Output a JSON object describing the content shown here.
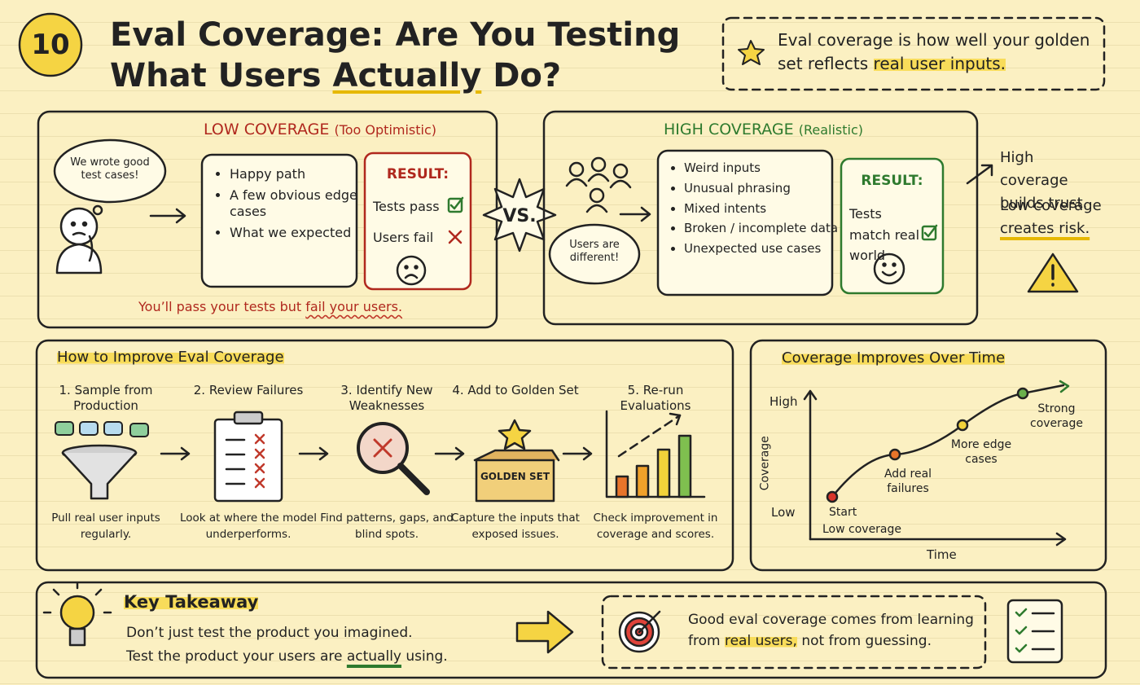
{
  "header": {
    "number": "10",
    "title_line1": "Eval Coverage: Are You Testing",
    "title_line2": [
      "What Users ",
      "Actually",
      " Do?"
    ]
  },
  "definition": [
    "Eval coverage is how well your golden set reflects ",
    "real user inputs."
  ],
  "low_coverage": {
    "title": "LOW COVERAGE",
    "subtitle": "(Too Optimistic)",
    "thought": "We wrote good test cases!",
    "items": [
      "Happy path",
      "A few obvious edge cases",
      "What we expected"
    ],
    "result_title": "RESULT:",
    "results": [
      "Tests pass",
      "Users fail"
    ],
    "footer": [
      "You’ll pass your tests but ",
      "fail your users."
    ]
  },
  "versus": "VS.",
  "high_coverage": {
    "title": "HIGH COVERAGE",
    "subtitle": "(Realistic)",
    "thought": "Users are different!",
    "items": [
      "Weird inputs",
      "Unusual phrasing",
      "Mixed intents",
      "Broken / incomplete data",
      "Unexpected use cases"
    ],
    "result_title": "RESULT:",
    "results": [
      "Tests match real world"
    ]
  },
  "conclusion": [
    "High coverage builds trust.",
    "Low coverage ",
    "creates risk."
  ],
  "improve": {
    "title": "How to Improve Eval Coverage",
    "steps": [
      {
        "title": "1. Sample from Production",
        "description": "Pull real user inputs regularly."
      },
      {
        "title": "2. Review Failures",
        "description": "Look at where the model underperforms."
      },
      {
        "title": "3. Identify New Weaknesses",
        "description": "Find patterns, gaps, and blind spots."
      },
      {
        "title": "4. Add to Golden Set",
        "description": "Capture the inputs that exposed issues."
      },
      {
        "title": "5. Re-run Evaluations",
        "description": "Check improvement in coverage and scores."
      }
    ],
    "box_label": "GOLDEN SET"
  },
  "progress": {
    "title": "Coverage Improves Over Time",
    "y_label": "Coverage",
    "x_label": "Time",
    "y_high": "High",
    "y_low": "Low",
    "stages": [
      "Start",
      "Low coverage",
      "Add real failures",
      "More edge cases",
      "Strong coverage"
    ]
  },
  "takeaway": {
    "title": "Key Takeaway",
    "line1": "Don’t just test the product you imagined.",
    "line2": [
      "Test the product your users are ",
      "actually",
      " using."
    ],
    "callout": [
      "Good eval coverage comes from learning from ",
      "real users,",
      " not from guessing."
    ]
  }
}
